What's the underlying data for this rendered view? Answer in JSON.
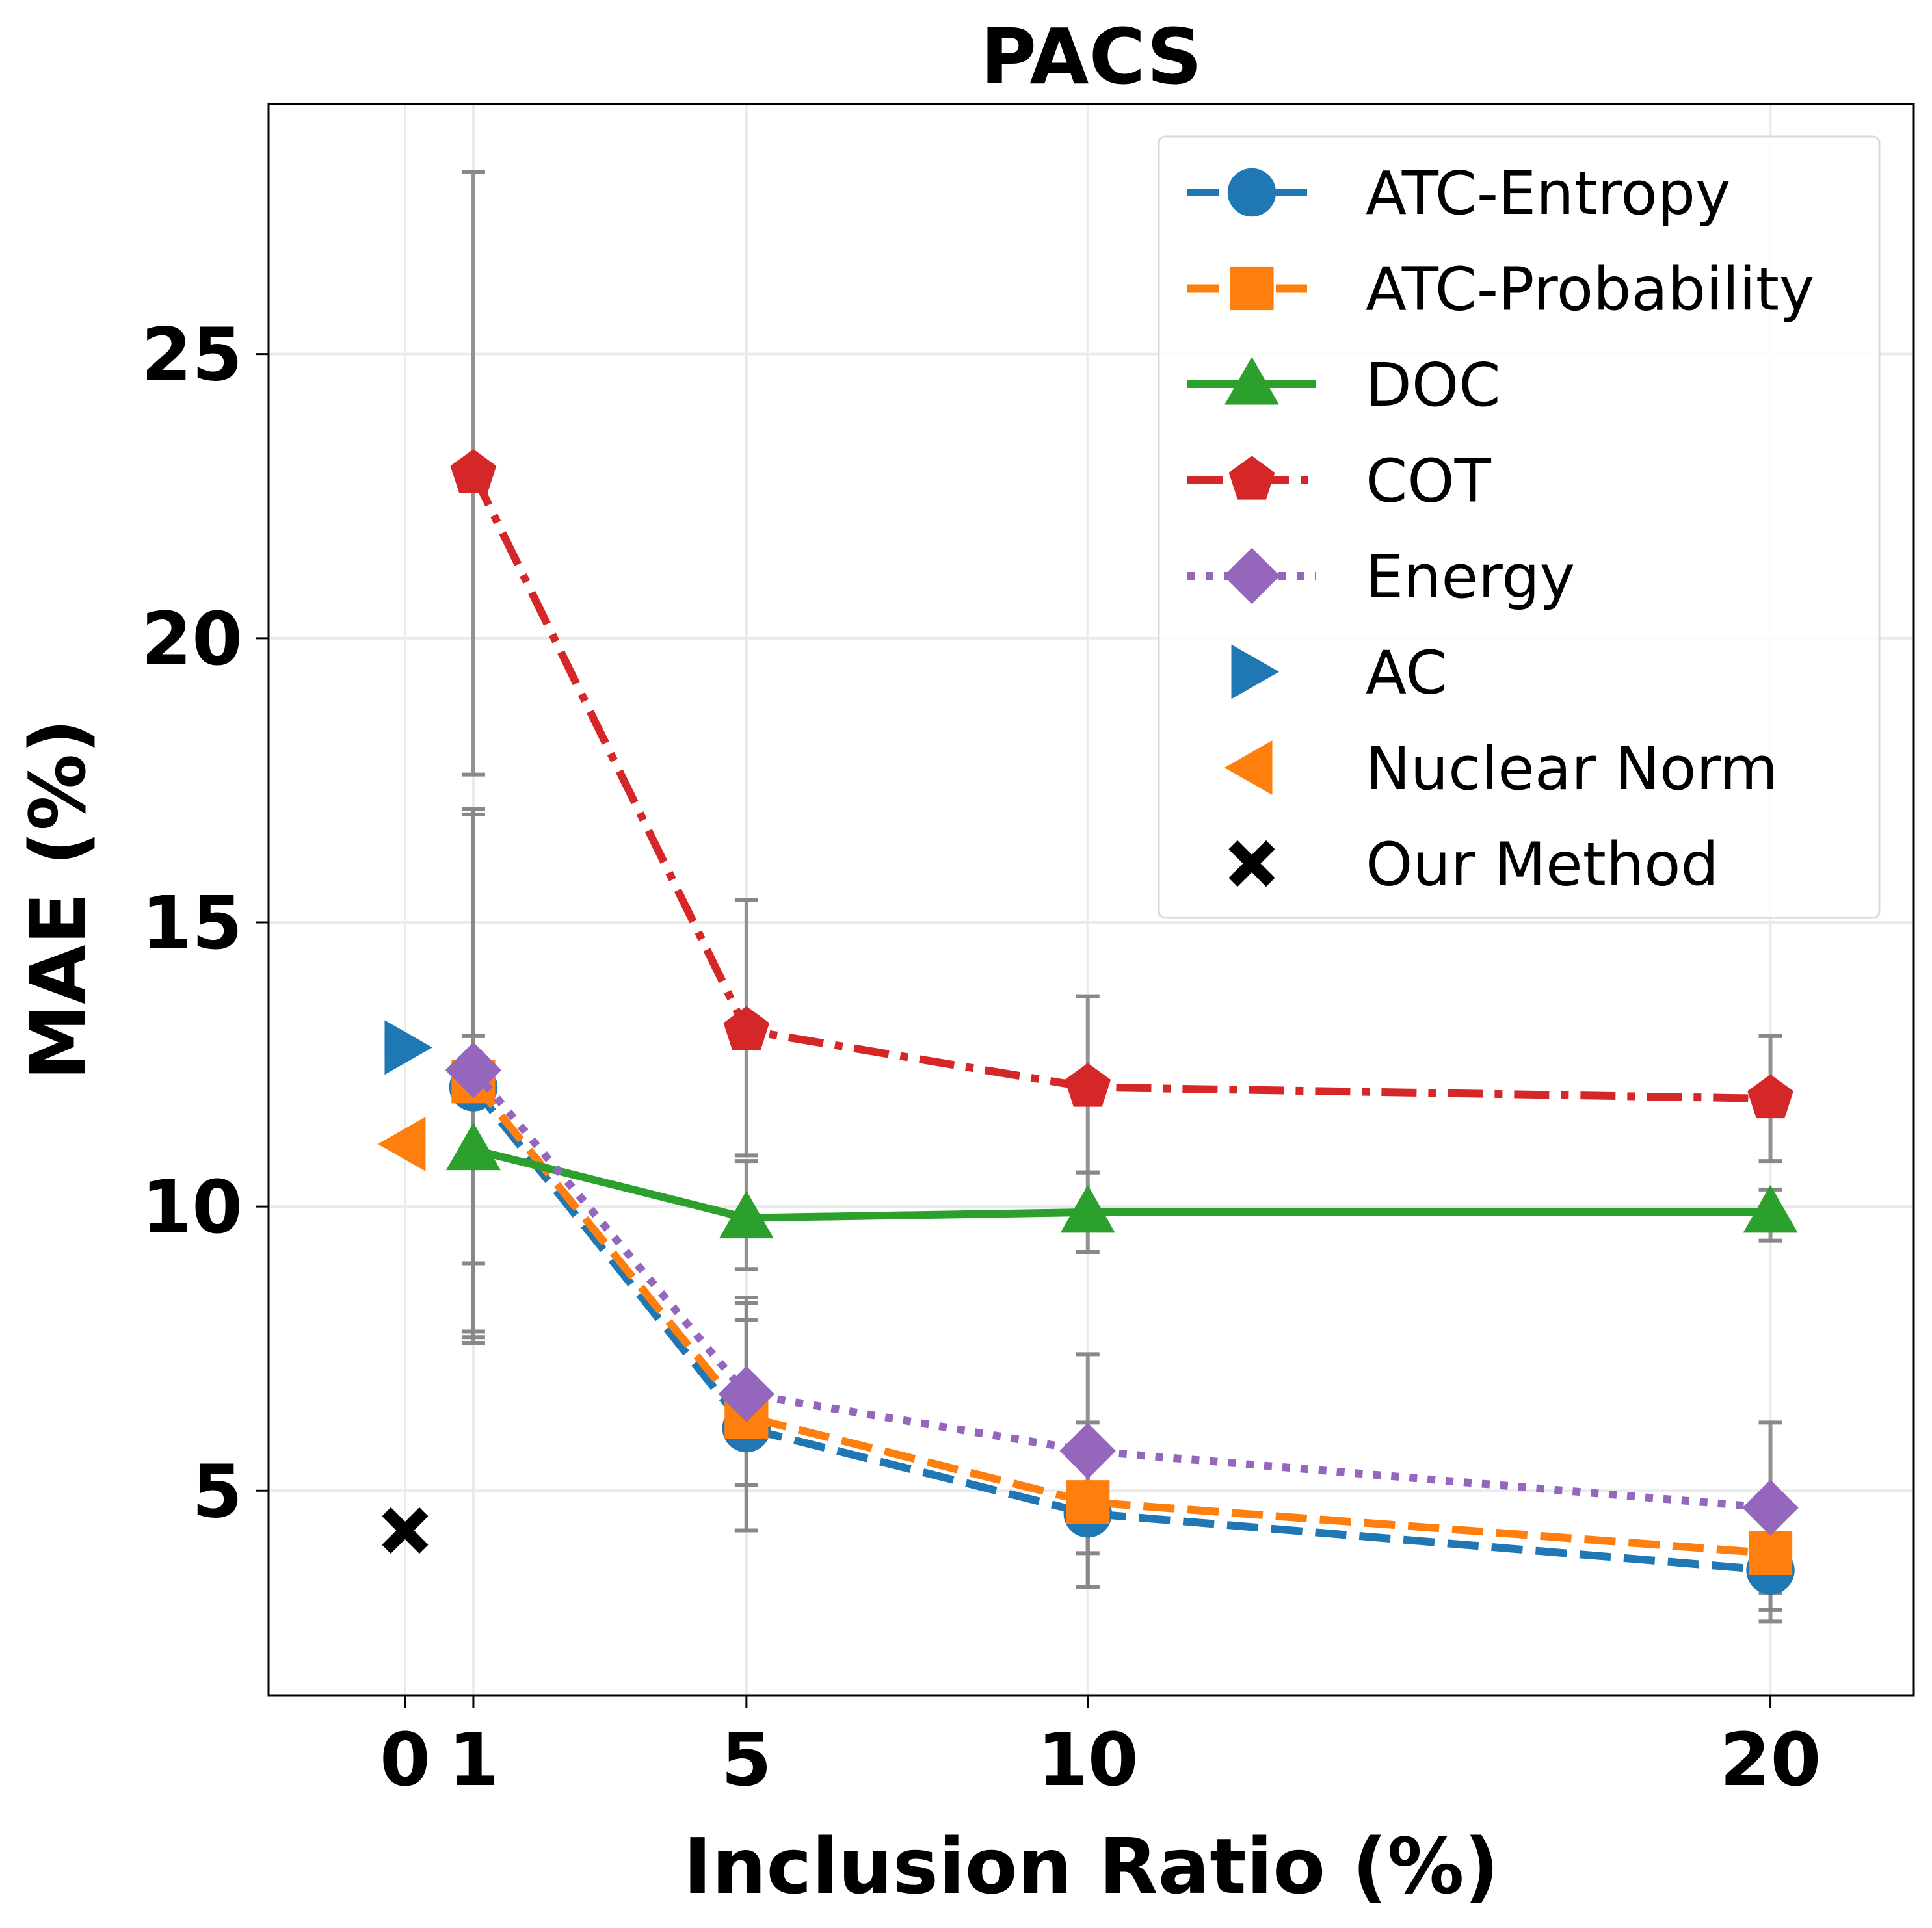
{
  "chart_data": {
    "type": "line",
    "title": "PACS",
    "xlabel": "Inclusion Ratio (%)",
    "ylabel": "MAE (%)",
    "xlim": [
      -2,
      22.1
    ],
    "ylim": [
      1.4,
      29.4
    ],
    "x_ticks": [
      0,
      1,
      5,
      10,
      20
    ],
    "y_ticks": [
      5,
      10,
      15,
      20,
      25
    ],
    "grid": true,
    "legend_position": "top-right",
    "series": [
      {
        "name": "ATC-Entropy",
        "color": "#1f77b4",
        "dash": "dashed",
        "marker": "circle",
        "x": [
          1,
          5,
          10,
          20
        ],
        "y": [
          12.1,
          6.1,
          4.6,
          3.6
        ],
        "err_low": [
          7.7,
          4.3,
          3.3,
          2.7
        ],
        "err_high": [
          16.9,
          8.0,
          5.9,
          4.5
        ]
      },
      {
        "name": "ATC-Probability",
        "color": "#ff7f0e",
        "dash": "dashed",
        "marker": "square",
        "x": [
          1,
          5,
          10,
          20
        ],
        "y": [
          12.2,
          6.3,
          4.8,
          3.9
        ],
        "err_low": [
          7.6,
          4.3,
          3.3,
          2.9
        ],
        "err_high": [
          17.0,
          8.3,
          6.2,
          4.8
        ]
      },
      {
        "name": "DOC",
        "color": "#2ca02c",
        "dash": "solid",
        "marker": "triangle-up",
        "x": [
          1,
          5,
          10,
          20
        ],
        "y": [
          11.0,
          9.8,
          9.9,
          9.9
        ],
        "err_low": [
          9.0,
          8.9,
          9.2,
          9.4
        ],
        "err_high": [
          13.0,
          10.8,
          10.6,
          10.3
        ]
      },
      {
        "name": "COT",
        "color": "#d62728",
        "dash": "dashdot",
        "marker": "pentagon",
        "x": [
          1,
          5,
          10,
          20
        ],
        "y": [
          22.9,
          13.1,
          12.1,
          11.9
        ],
        "err_low": [
          17.6,
          10.9,
          10.6,
          10.8
        ],
        "err_high": [
          28.2,
          15.4,
          13.7,
          13.0
        ]
      },
      {
        "name": "Energy",
        "color": "#9467bd",
        "dash": "dotted",
        "marker": "diamond",
        "x": [
          1,
          5,
          10,
          20
        ],
        "y": [
          12.4,
          6.7,
          5.7,
          4.7
        ],
        "err_low": [
          7.8,
          5.1,
          3.9,
          3.2
        ],
        "err_high": [
          17.0,
          8.4,
          7.4,
          6.2
        ]
      },
      {
        "name": "AC",
        "color": "#1f77b4",
        "dash": "none",
        "marker": "triangle-right",
        "x": [
          0
        ],
        "y": [
          12.8
        ]
      },
      {
        "name": "Nuclear Norm",
        "color": "#ff7f0e",
        "dash": "none",
        "marker": "triangle-left",
        "x": [
          0
        ],
        "y": [
          11.1
        ]
      },
      {
        "name": "Our Method",
        "color": "#000000",
        "dash": "none",
        "marker": "x",
        "x": [
          0
        ],
        "y": [
          4.3
        ]
      }
    ]
  }
}
